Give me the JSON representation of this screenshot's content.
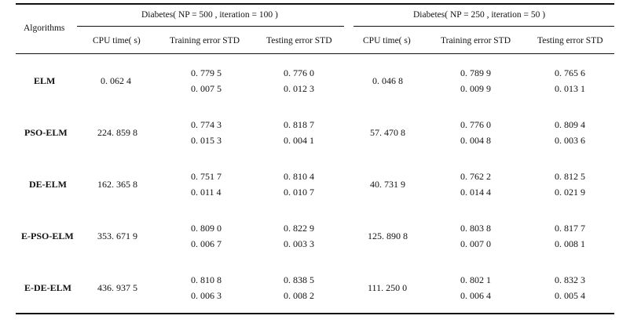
{
  "table": {
    "corner_header": "Algorithms",
    "groups": [
      {
        "label": "Diabetes( NP = 500 , iteration = 100 )"
      },
      {
        "label": "Diabetes( NP = 250 , iteration = 50 )"
      }
    ],
    "columns": [
      "CPU time( s)",
      "Training error STD",
      "Testing error STD",
      "CPU time( s)",
      "Training error STD",
      "Testing error STD"
    ],
    "rows": [
      {
        "algorithm": "ELM",
        "g1": {
          "cpu": "0. 062 4",
          "train": [
            "0. 779 5",
            "0. 007 5"
          ],
          "test": [
            "0. 776 0",
            "0. 012 3"
          ]
        },
        "g2": {
          "cpu": "0. 046 8",
          "train": [
            "0. 789 9",
            "0. 009 9"
          ],
          "test": [
            "0. 765 6",
            "0. 013 1"
          ]
        }
      },
      {
        "algorithm": "PSO-ELM",
        "g1": {
          "cpu": "224. 859 8",
          "train": [
            "0. 774 3",
            "0. 015 3"
          ],
          "test": [
            "0. 818 7",
            "0. 004 1"
          ]
        },
        "g2": {
          "cpu": "57. 470 8",
          "train": [
            "0. 776 0",
            "0. 004 8"
          ],
          "test": [
            "0. 809 4",
            "0. 003 6"
          ]
        }
      },
      {
        "algorithm": "DE-ELM",
        "g1": {
          "cpu": "162. 365 8",
          "train": [
            "0. 751 7",
            "0. 011 4"
          ],
          "test": [
            "0. 810 4",
            "0. 010 7"
          ]
        },
        "g2": {
          "cpu": "40. 731 9",
          "train": [
            "0. 762 2",
            "0. 014 4"
          ],
          "test": [
            "0. 812 5",
            "0. 021 9"
          ]
        }
      },
      {
        "algorithm": "E-PSO-ELM",
        "g1": {
          "cpu": "353. 671 9",
          "train": [
            "0. 809 0",
            "0. 006 7"
          ],
          "test": [
            "0. 822 9",
            "0. 003 3"
          ]
        },
        "g2": {
          "cpu": "125. 890 8",
          "train": [
            "0. 803 8",
            "0. 007 0"
          ],
          "test": [
            "0. 817 7",
            "0. 008 1"
          ]
        }
      },
      {
        "algorithm": "E-DE-ELM",
        "g1": {
          "cpu": "436. 937 5",
          "train": [
            "0. 810 8",
            "0. 006 3"
          ],
          "test": [
            "0. 838 5",
            "0. 008 2"
          ]
        },
        "g2": {
          "cpu": "111. 250 0",
          "train": [
            "0. 802 1",
            "0. 006 4"
          ],
          "test": [
            "0. 832 3",
            "0. 005 4"
          ]
        }
      }
    ]
  }
}
